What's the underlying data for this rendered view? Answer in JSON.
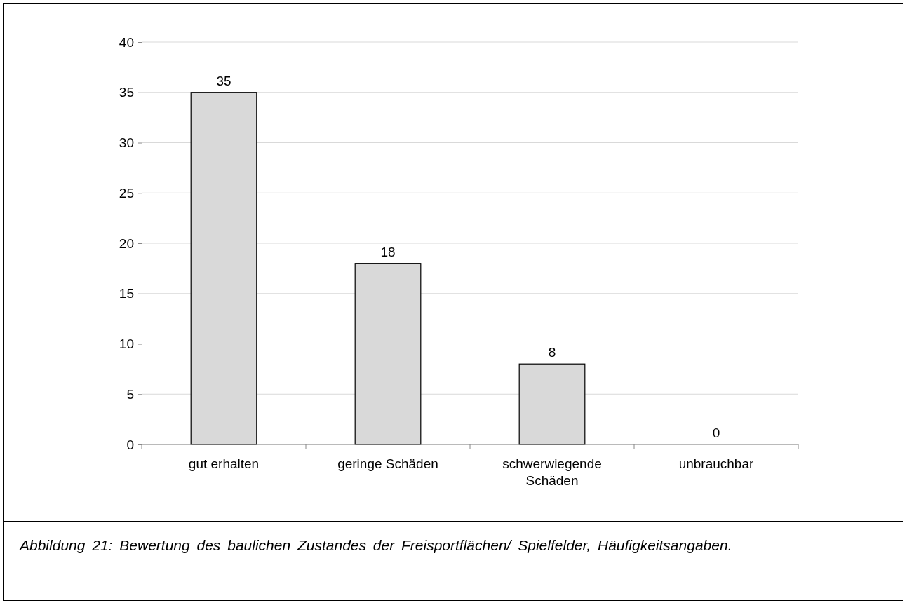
{
  "chart_data": {
    "type": "bar",
    "categories": [
      "gut erhalten",
      "geringe Schäden",
      "schwerwiegende Schäden",
      "unbrauchbar"
    ],
    "values": [
      35,
      18,
      8,
      0
    ],
    "color": "#d9d9d9",
    "ylim": [
      0,
      40
    ],
    "yticks": [
      0,
      5,
      10,
      15,
      20,
      25,
      30,
      35,
      40
    ],
    "grid": "y",
    "data_labels": true,
    "annotations": [
      "Abbildung 21: Bewertung des baulichen Zustandes der Freisportflächen/ Spielfelder, Häufigkeitsangaben."
    ]
  }
}
